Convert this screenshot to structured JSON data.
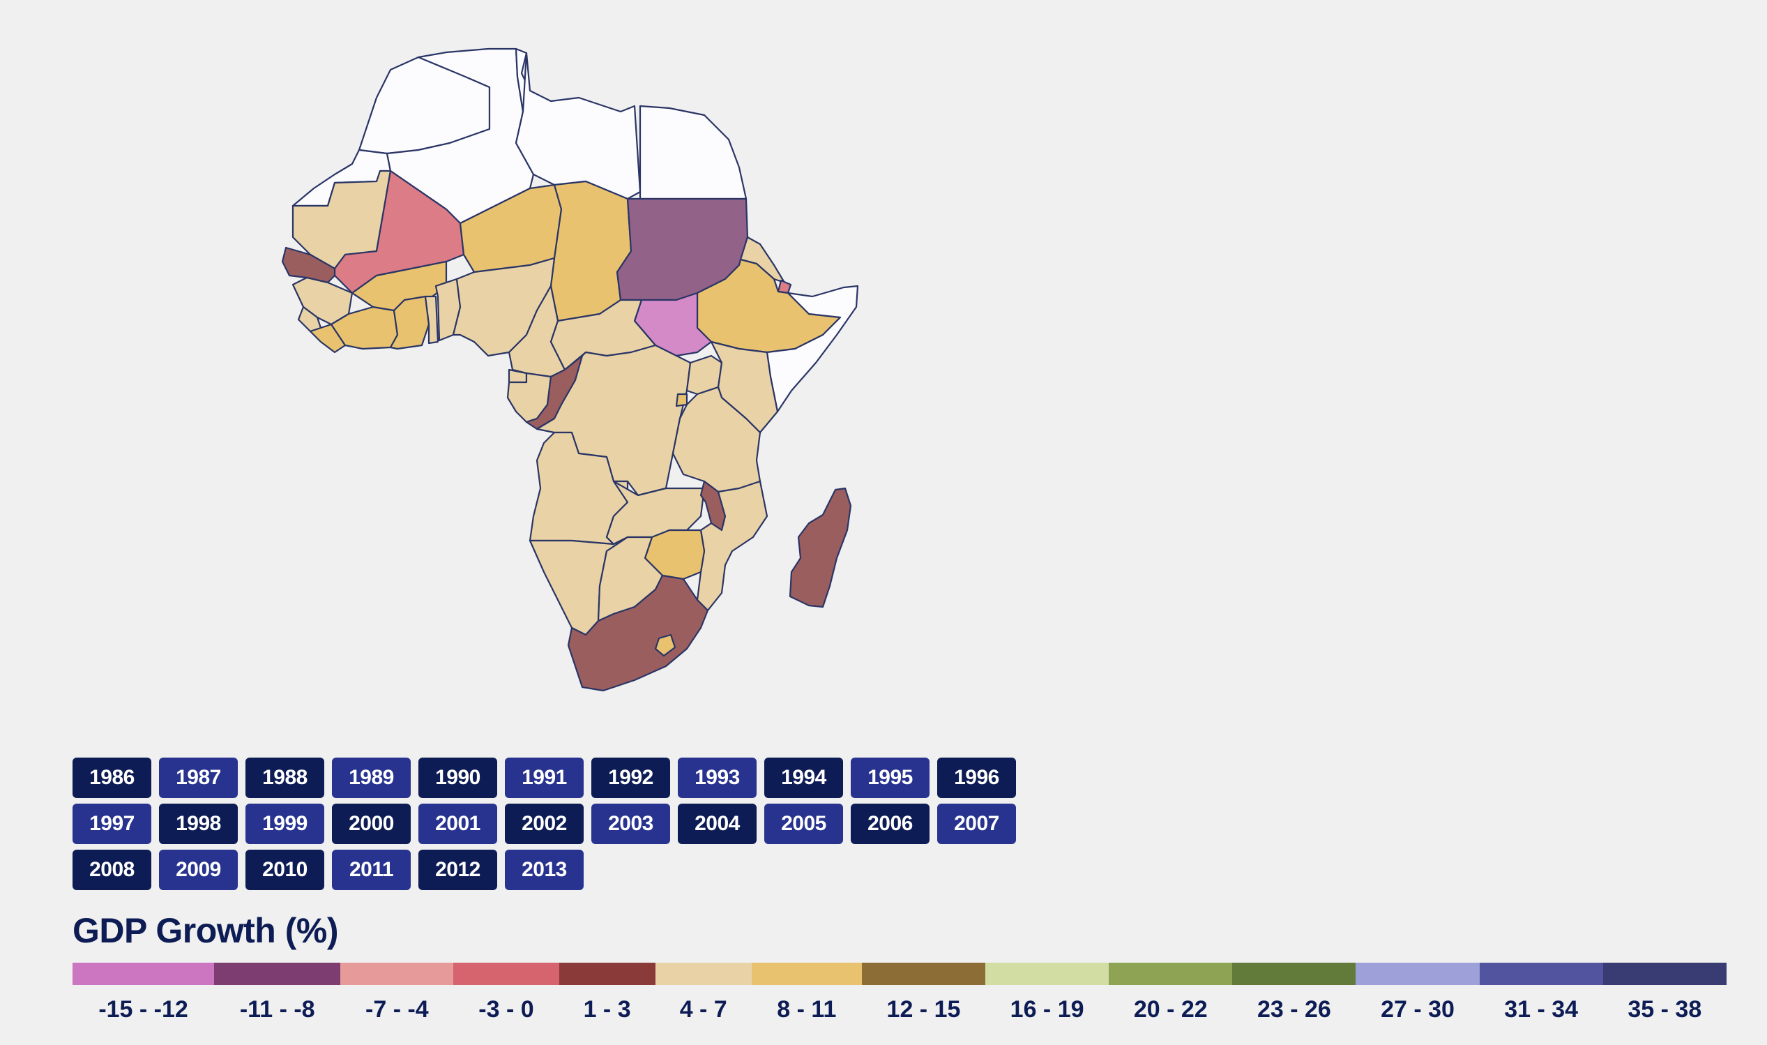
{
  "map": {
    "colors": {
      "none": "#fcfcfe",
      "c_-15": "#cc76c1",
      "c_-11": "#7d3d70",
      "c_-7": "#e69a9a",
      "c_-3": "#d6646f",
      "c_1": "#8b3a3a",
      "c_4": "#e9d3a6",
      "c_8": "#e8c26e",
      "c_12": "#8c6d36",
      "purple_mid": "#936289",
      "pink_light": "#d58ac8",
      "brown_muted": "#9b5e5e",
      "rose": "#db7c87"
    },
    "countries": [
      {
        "name": "morocco",
        "class": "none"
      },
      {
        "name": "western-sahara",
        "class": "none"
      },
      {
        "name": "algeria",
        "class": "none"
      },
      {
        "name": "tunisia",
        "class": "none"
      },
      {
        "name": "libya",
        "class": "none"
      },
      {
        "name": "egypt",
        "class": "none"
      },
      {
        "name": "mauritania",
        "class": "c_4"
      },
      {
        "name": "mali",
        "class": "rose"
      },
      {
        "name": "niger",
        "class": "c_8"
      },
      {
        "name": "chad",
        "class": "c_8"
      },
      {
        "name": "sudan",
        "class": "purple_mid"
      },
      {
        "name": "eritrea",
        "class": "c_4"
      },
      {
        "name": "djibouti",
        "class": "rose"
      },
      {
        "name": "ethiopia",
        "class": "c_8"
      },
      {
        "name": "somalia",
        "class": "none"
      },
      {
        "name": "south-sudan",
        "class": "pink_light"
      },
      {
        "name": "senegal",
        "class": "brown_muted"
      },
      {
        "name": "guinea",
        "class": "c_4"
      },
      {
        "name": "sierra-leone",
        "class": "c_4"
      },
      {
        "name": "liberia",
        "class": "c_8"
      },
      {
        "name": "cote-divoire",
        "class": "c_8"
      },
      {
        "name": "burkina-faso",
        "class": "c_8"
      },
      {
        "name": "ghana",
        "class": "c_8"
      },
      {
        "name": "togo",
        "class": "c_4"
      },
      {
        "name": "benin",
        "class": "c_4"
      },
      {
        "name": "nigeria",
        "class": "c_4"
      },
      {
        "name": "cameroon",
        "class": "c_4"
      },
      {
        "name": "central-african-republic",
        "class": "c_4"
      },
      {
        "name": "gabon",
        "class": "c_4"
      },
      {
        "name": "equatorial-guinea",
        "class": "c_4"
      },
      {
        "name": "congo",
        "class": "brown_muted"
      },
      {
        "name": "dr-congo",
        "class": "c_4"
      },
      {
        "name": "uganda",
        "class": "c_4"
      },
      {
        "name": "kenya",
        "class": "c_4"
      },
      {
        "name": "rwanda",
        "class": "c_8"
      },
      {
        "name": "tanzania",
        "class": "c_4"
      },
      {
        "name": "angola",
        "class": "c_4"
      },
      {
        "name": "zambia",
        "class": "c_4"
      },
      {
        "name": "malawi",
        "class": "brown_muted"
      },
      {
        "name": "mozambique",
        "class": "c_4"
      },
      {
        "name": "zimbabwe",
        "class": "c_8"
      },
      {
        "name": "namibia",
        "class": "c_4"
      },
      {
        "name": "botswana",
        "class": "c_4"
      },
      {
        "name": "south-africa",
        "class": "brown_muted"
      },
      {
        "name": "lesotho",
        "class": "c_8"
      },
      {
        "name": "madagascar",
        "class": "brown_muted"
      }
    ]
  },
  "years": [
    "1986",
    "1987",
    "1988",
    "1989",
    "1990",
    "1991",
    "1992",
    "1993",
    "1994",
    "1995",
    "1996",
    "1997",
    "1998",
    "1999",
    "2000",
    "2001",
    "2002",
    "2003",
    "2004",
    "2005",
    "2006",
    "2007",
    "2008",
    "2009",
    "2010",
    "2011",
    "2012",
    "2013"
  ],
  "year_button_colors": {
    "dark": "#0d1c54",
    "light": "#27338f"
  },
  "legend": {
    "title": "GDP Growth (%)",
    "bins": [
      {
        "label": "-15 - -12",
        "color": "#cc76c1"
      },
      {
        "label": "-11 - -8",
        "color": "#7d3d70"
      },
      {
        "label": "-7 - -4",
        "color": "#e69a9a"
      },
      {
        "label": "-3 - 0",
        "color": "#d6646f"
      },
      {
        "label": "1 - 3",
        "color": "#8b3a3a"
      },
      {
        "label": "4 - 7",
        "color": "#e9d3a6"
      },
      {
        "label": "8 - 11",
        "color": "#e8c26e"
      },
      {
        "label": "12 - 15",
        "color": "#8c6d36"
      },
      {
        "label": "16 - 19",
        "color": "#d2dda3"
      },
      {
        "label": "20 - 22",
        "color": "#8ea353"
      },
      {
        "label": "23 - 26",
        "color": "#627a3a"
      },
      {
        "label": "27 - 30",
        "color": "#9ea0da"
      },
      {
        "label": "31 - 34",
        "color": "#5254a0"
      },
      {
        "label": "35 - 38",
        "color": "#393b73"
      }
    ]
  }
}
